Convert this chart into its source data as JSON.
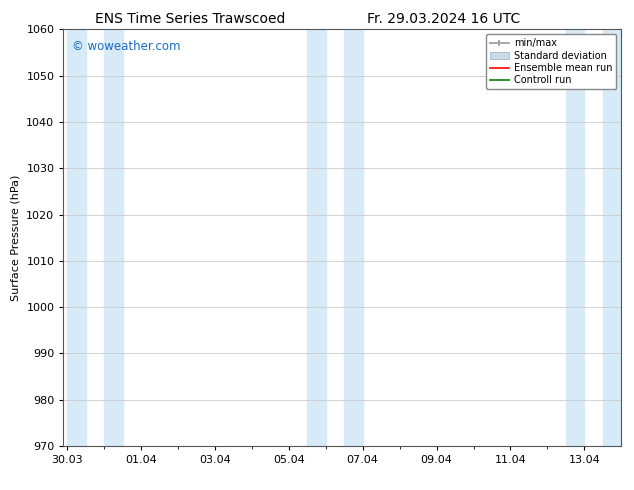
{
  "title_left": "ENS Time Series Trawscoed",
  "title_right": "Fr. 29.03.2024 16 UTC",
  "ylabel": "Surface Pressure (hPa)",
  "ylim": [
    970,
    1060
  ],
  "yticks": [
    970,
    980,
    990,
    1000,
    1010,
    1020,
    1030,
    1040,
    1050,
    1060
  ],
  "xtick_labels": [
    "30.03",
    "01.04",
    "03.04",
    "05.04",
    "07.04",
    "09.04",
    "11.04",
    "13.04"
  ],
  "xtick_positions": [
    0,
    2,
    4,
    6,
    8,
    10,
    12,
    14
  ],
  "xlim": [
    -0.1,
    15.0
  ],
  "shaded_bands": [
    {
      "xmin": 0.0,
      "xmax": 0.5
    },
    {
      "xmin": 1.0,
      "xmax": 1.5
    },
    {
      "xmin": 6.5,
      "xmax": 7.0
    },
    {
      "xmin": 7.5,
      "xmax": 8.0
    },
    {
      "xmin": 13.5,
      "xmax": 14.0
    },
    {
      "xmin": 14.5,
      "xmax": 15.0
    }
  ],
  "band_color": "#d6eaf8",
  "watermark": "© woweather.com",
  "watermark_color": "#1a6bc7",
  "background_color": "#ffffff",
  "plot_bg_color": "#ffffff",
  "grid_color": "#cccccc",
  "legend_items": [
    {
      "label": "min/max",
      "color": "#999999",
      "style": "errorbar"
    },
    {
      "label": "Standard deviation",
      "color": "#c8ddef",
      "style": "fill"
    },
    {
      "label": "Ensemble mean run",
      "color": "#ff0000",
      "style": "line"
    },
    {
      "label": "Controll run",
      "color": "#008000",
      "style": "line"
    }
  ],
  "title_fontsize": 10,
  "label_fontsize": 8,
  "tick_fontsize": 8
}
